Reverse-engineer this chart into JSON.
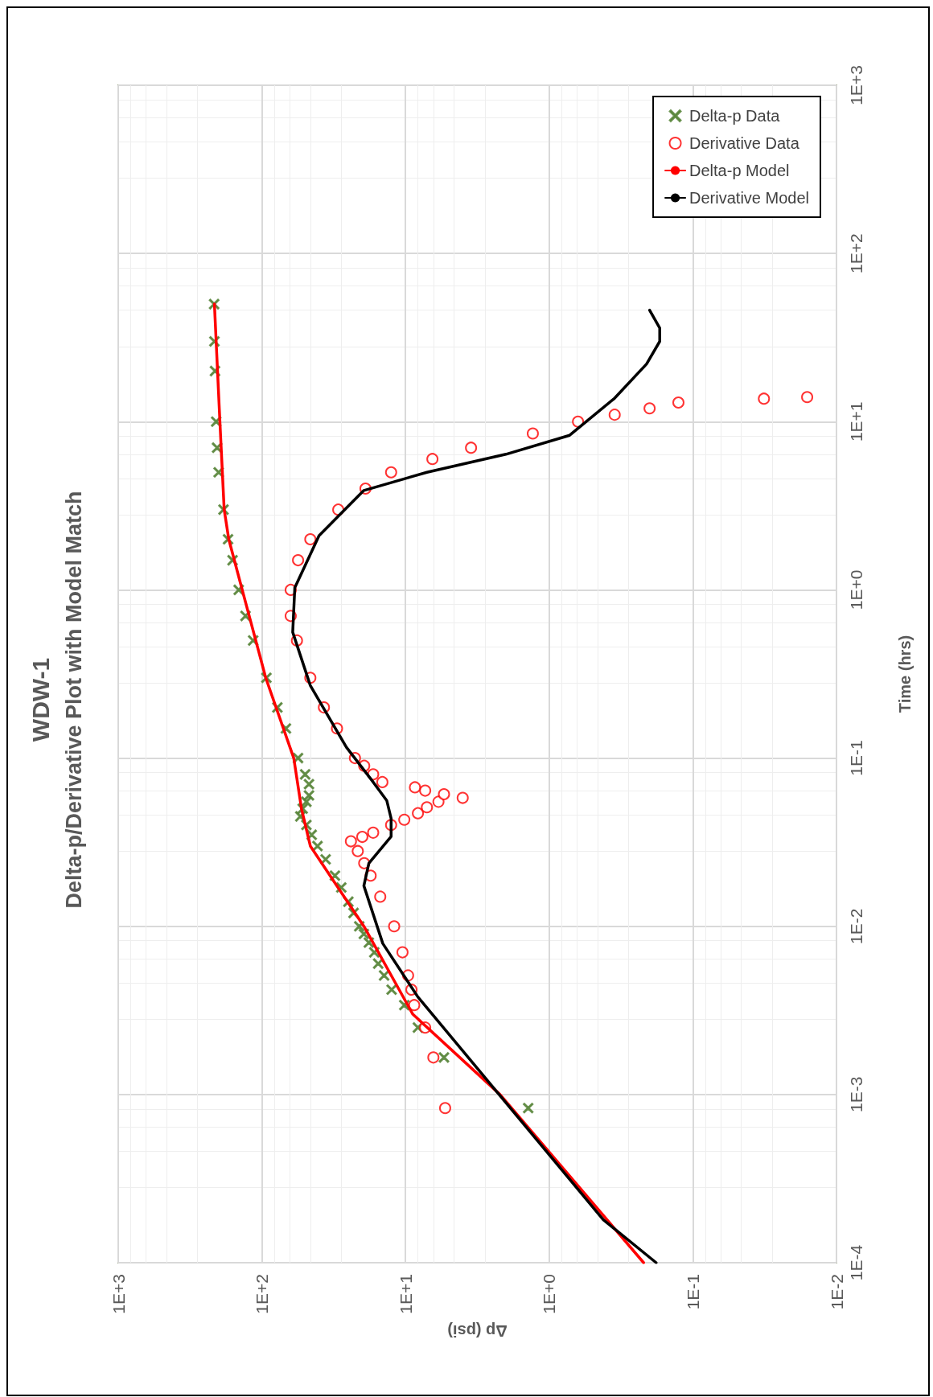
{
  "chart_data": {
    "type": "scatter",
    "title": "WDW-1",
    "subtitle": "Delta-p/Derivative Plot with Model Match",
    "xlabel": "Δp (psi)",
    "ylabel": "Time (hrs)",
    "log": "xy",
    "grid": true,
    "legend": "top right",
    "xlim": [
      1000,
      0.01
    ],
    "ylim": [
      0.0001,
      1000
    ],
    "xticks": [
      {
        "value": 0.01,
        "label": "1E-2"
      },
      {
        "value": 0.1,
        "label": "1E-1"
      },
      {
        "value": 1,
        "label": "1E+0"
      },
      {
        "value": 10,
        "label": "1E+1"
      },
      {
        "value": 100,
        "label": "1E+2"
      },
      {
        "value": 1000,
        "label": "1E+3"
      }
    ],
    "yticks": [
      {
        "value": 0.0001,
        "label": "1E-4"
      },
      {
        "value": 0.001,
        "label": "1E-3"
      },
      {
        "value": 0.01,
        "label": "1E-2"
      },
      {
        "value": 0.1,
        "label": "1E-1"
      },
      {
        "value": 1,
        "label": "1E+0"
      },
      {
        "value": 10,
        "label": "1E+1"
      },
      {
        "value": 100,
        "label": "1E+2"
      },
      {
        "value": 1000,
        "label": "1E+3"
      }
    ],
    "series": [
      {
        "name": "Delta-p Data",
        "marker": "cross",
        "color": "#548235",
        "values": [
          0.00083,
          0.00166,
          0.0025,
          0.0034,
          0.0042,
          0.0051,
          0.006,
          0.007,
          0.008,
          0.009,
          0.01,
          0.012,
          0.014,
          0.017,
          0.02,
          0.025,
          0.03,
          0.035,
          0.04,
          0.045,
          0.05,
          0.055,
          0.06,
          0.07,
          0.08,
          0.1,
          0.15,
          0.2,
          0.3,
          0.5,
          0.7,
          1,
          1.5,
          2,
          3,
          5,
          7,
          10,
          20,
          30,
          50
        ],
        "x": [
          1.4,
          5.4,
          8.2,
          10.2,
          12.5,
          14.1,
          15.5,
          16.5,
          18,
          19.5,
          21,
          23,
          25,
          28,
          31,
          36,
          41,
          45,
          49,
          54,
          52,
          49,
          47,
          47,
          50,
          56,
          68,
          78,
          93,
          115,
          130,
          145,
          160,
          172,
          185,
          200,
          205,
          208,
          212,
          214,
          215
        ]
      },
      {
        "name": "Derivative Data",
        "marker": "circle",
        "color": "#ff0000",
        "values": [
          0.00083,
          0.00166,
          0.0025,
          0.0034,
          0.0042,
          0.0051,
          0.007,
          0.01,
          0.015,
          0.02,
          0.0237,
          0.028,
          0.032,
          0.034,
          0.036,
          0.04,
          0.043,
          0.047,
          0.051,
          0.055,
          0.058,
          0.061,
          0.064,
          0.067,
          0.072,
          0.08,
          0.09,
          0.1,
          0.15,
          0.2,
          0.3,
          0.5,
          0.7,
          1,
          1.5,
          2,
          3,
          4,
          5,
          6,
          7,
          8.5,
          10,
          11,
          12,
          13,
          13.7,
          14.0
        ],
        "x": [
          5.3,
          6.4,
          7.3,
          8.7,
          9.1,
          9.6,
          10.5,
          12,
          15,
          17.5,
          19.4,
          21.5,
          24,
          20,
          16.8,
          12.6,
          10.2,
          8.2,
          7.1,
          5.9,
          4.0,
          5.4,
          7.3,
          8.6,
          14.5,
          16.8,
          19.4,
          22.5,
          30,
          37,
          46,
          57,
          63,
          63,
          56,
          46,
          29.4,
          19,
          12.6,
          6.5,
          3.5,
          1.3,
          0.63,
          0.35,
          0.2,
          0.126,
          0.032,
          0.016
        ]
      },
      {
        "name": "Delta-p Model",
        "type": "line",
        "marker": "none",
        "color": "#ff0000",
        "values": [
          0.0001,
          0.001,
          0.003,
          0.01,
          0.03,
          0.05,
          0.1,
          0.3,
          1,
          2,
          3,
          10,
          50
        ],
        "x": [
          0.22,
          2.2,
          8.9,
          19.5,
          46,
          53,
          60,
          94,
          137,
          170,
          183,
          196,
          214
        ]
      },
      {
        "name": "Derivative Model",
        "type": "line",
        "marker": "none",
        "color": "#000000",
        "values": [
          0.0001,
          0.00018,
          0.0038,
          0.0079,
          0.0174,
          0.0237,
          0.0342,
          0.0438,
          0.0558,
          0.072,
          0.116,
          0.27,
          0.56,
          1.03,
          2.1,
          3.9,
          5.0,
          6.4,
          8.3,
          13.8,
          22,
          30,
          36,
          46
        ],
        "x": [
          0.18,
          0.42,
          8.2,
          14.4,
          19.5,
          18,
          12.6,
          12.6,
          13.5,
          16.8,
          25.8,
          46,
          61,
          59,
          40,
          19.5,
          7.1,
          2.0,
          0.72,
          0.35,
          0.21,
          0.17,
          0.17,
          0.2
        ]
      }
    ]
  }
}
